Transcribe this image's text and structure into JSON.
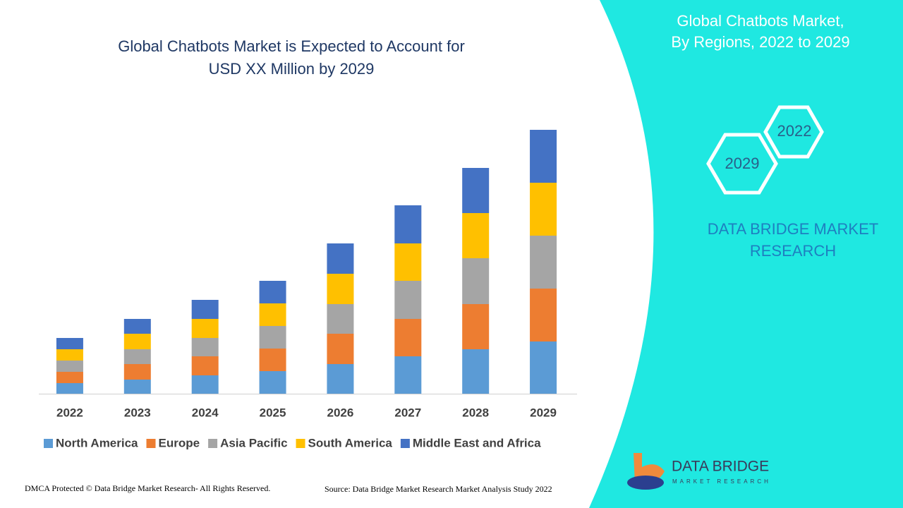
{
  "chart_data": {
    "type": "stacked_bar",
    "title": [
      "Global Chatbots Market is Expected to Account for",
      "USD XX Million by 2029"
    ],
    "categories": [
      "2022",
      "2023",
      "2024",
      "2025",
      "2026",
      "2027",
      "2028",
      "2029"
    ],
    "series": [
      {
        "name": "North America",
        "color": "#5b9bd5",
        "values": [
          15,
          20,
          26,
          32,
          42,
          53,
          63,
          74
        ]
      },
      {
        "name": "Europe",
        "color": "#ed7d31",
        "values": [
          16,
          22,
          27,
          32,
          43,
          53,
          64,
          75
        ]
      },
      {
        "name": "Asia Pacific",
        "color": "#a5a5a5",
        "values": [
          16,
          21,
          26,
          32,
          42,
          54,
          65,
          75
        ]
      },
      {
        "name": "South America",
        "color": "#ffc000",
        "values": [
          16,
          22,
          27,
          32,
          43,
          53,
          64,
          75
        ]
      },
      {
        "name": "Middle East and Africa",
        "color": "#4472c4",
        "values": [
          16,
          21,
          27,
          32,
          43,
          54,
          64,
          75
        ]
      }
    ],
    "ylim": [
      0,
      400
    ],
    "legend": "bottom"
  },
  "panel": {
    "title": [
      "Global Chatbots Market,",
      "By Regions,  2022 to 2029"
    ],
    "hexagons": [
      "2022",
      "2029"
    ],
    "brand": [
      "DATA BRIDGE MARKET",
      "RESEARCH"
    ]
  },
  "logo": {
    "name": "DATA BRIDGE",
    "tagline": "MARKET RESEARCH"
  },
  "footer": {
    "left": "DMCA Protected © Data Bridge Market Research- All Rights Reserved.",
    "right": "Source: Data Bridge Market Research Market Analysis Study 2022"
  }
}
